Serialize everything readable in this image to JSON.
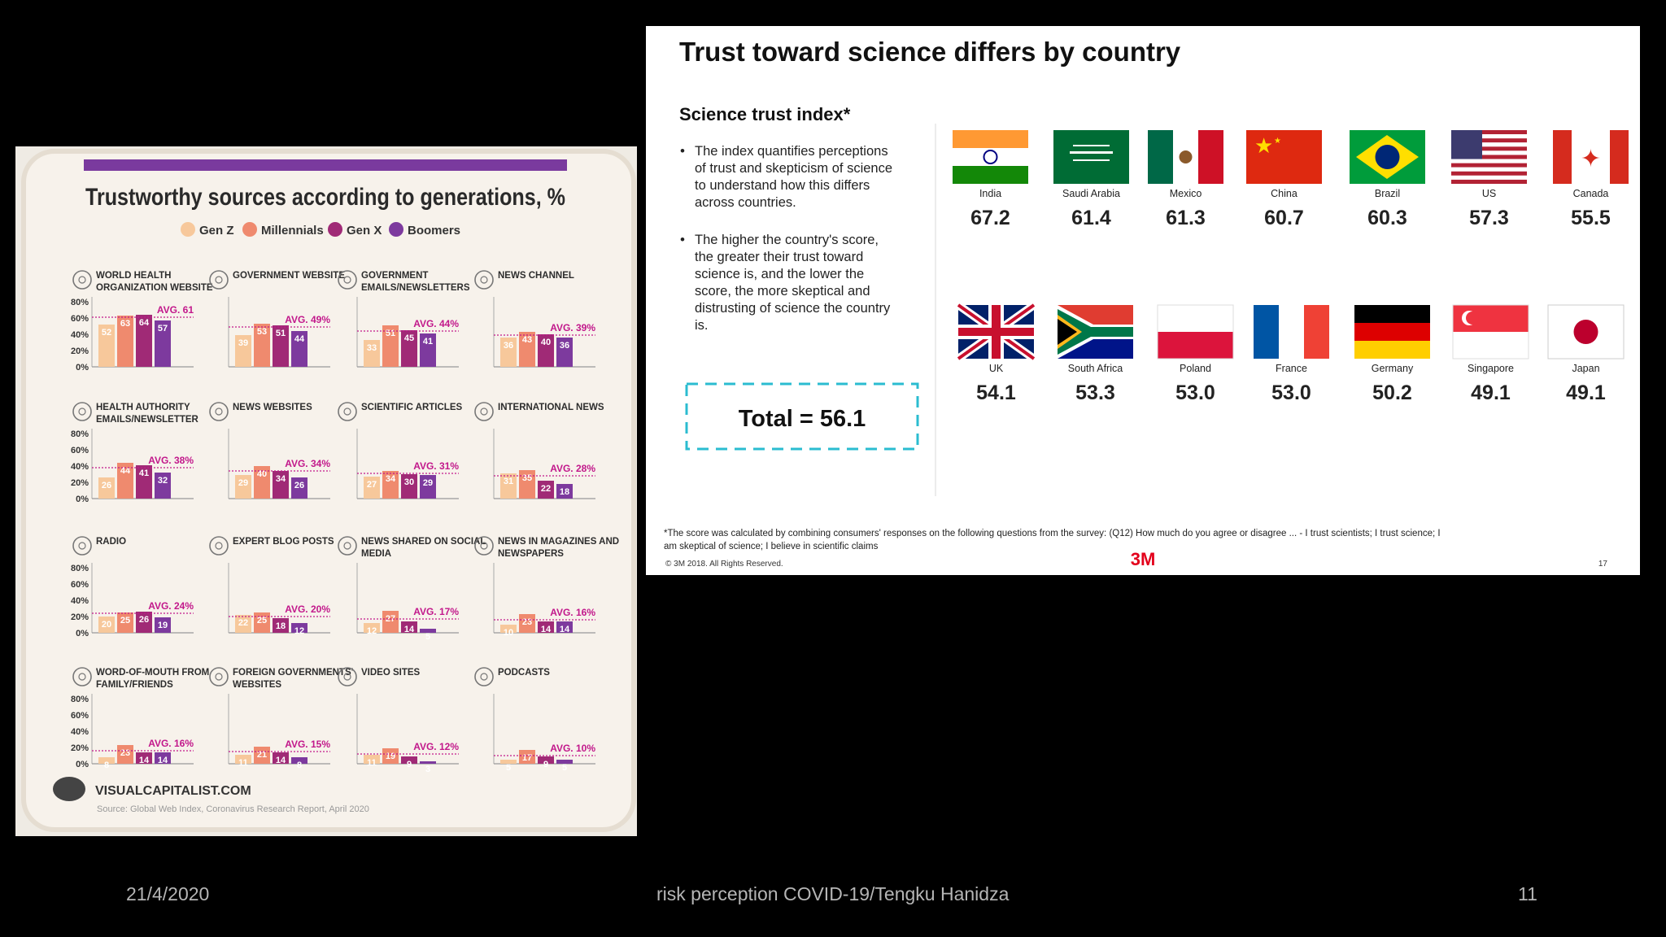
{
  "slide": {
    "date": "21/4/2020",
    "footer": "risk perception COVID-19/Tengku Hanidza",
    "page_number": "11"
  },
  "chart_data": [
    {
      "type": "bar",
      "title": "Trustworthy sources according to generations, %",
      "series_names": [
        "Gen Z",
        "Millennials",
        "Gen X",
        "Boomers"
      ],
      "series_colors": [
        "#f7c89b",
        "#ef8a6e",
        "#a02a76",
        "#7d3a9e"
      ],
      "ylabels": [
        "80%",
        "60%",
        "40%",
        "20%",
        "0%"
      ],
      "ylim": [
        0,
        80
      ],
      "panels": [
        {
          "name": "WORLD HEALTH ORGANIZATION WEBSITE",
          "values": [
            52,
            63,
            64,
            57
          ],
          "avg": 61,
          "avg_label": "AVG. 61"
        },
        {
          "name": "GOVERNMENT WEBSITE",
          "values": [
            39,
            53,
            51,
            44
          ],
          "avg": 49,
          "avg_label": "AVG. 49%"
        },
        {
          "name": "GOVERNMENT EMAILS/NEWSLETTERS",
          "values": [
            33,
            51,
            45,
            41
          ],
          "avg": 44,
          "avg_label": "AVG. 44%"
        },
        {
          "name": "NEWS CHANNEL",
          "values": [
            36,
            43,
            40,
            36
          ],
          "avg": 39,
          "avg_label": "AVG. 39%"
        },
        {
          "name": "HEALTH AUTHORITY EMAILS/NEWSLETTER",
          "values": [
            26,
            44,
            41,
            32
          ],
          "avg": 38,
          "avg_label": "AVG. 38%"
        },
        {
          "name": "NEWS WEBSITES",
          "values": [
            29,
            40,
            34,
            26
          ],
          "avg": 34,
          "avg_label": "AVG. 34%"
        },
        {
          "name": "SCIENTIFIC ARTICLES",
          "values": [
            27,
            34,
            30,
            29
          ],
          "avg": 31,
          "avg_label": "AVG. 31%"
        },
        {
          "name": "INTERNATIONAL NEWS",
          "values": [
            31,
            35,
            22,
            18
          ],
          "avg": 28,
          "avg_label": "AVG. 28%"
        },
        {
          "name": "RADIO",
          "values": [
            20,
            25,
            26,
            19
          ],
          "avg": 24,
          "avg_label": "AVG. 24%"
        },
        {
          "name": "EXPERT BLOG POSTS",
          "values": [
            22,
            25,
            18,
            12
          ],
          "avg": 20,
          "avg_label": "AVG. 20%"
        },
        {
          "name": "NEWS SHARED ON SOCIAL MEDIA",
          "values": [
            12,
            27,
            14,
            5
          ],
          "avg": 17,
          "avg_label": "AVG. 17%"
        },
        {
          "name": "NEWS IN MAGAZINES AND NEWSPAPERS",
          "values": [
            10,
            23,
            14,
            14
          ],
          "avg": 16,
          "avg_label": "AVG. 16%"
        },
        {
          "name": "WORD-OF-MOUTH FROM FAMILY/FRIENDS",
          "values": [
            8,
            23,
            14,
            14
          ],
          "avg": 16,
          "avg_label": "AVG. 16%"
        },
        {
          "name": "FOREIGN GOVERNMENTS' WEBSITES",
          "values": [
            11,
            21,
            14,
            8
          ],
          "avg": 15,
          "avg_label": "AVG. 15%"
        },
        {
          "name": "VIDEO SITES",
          "values": [
            11,
            19,
            9,
            3
          ],
          "avg": 12,
          "avg_label": "AVG. 12%"
        },
        {
          "name": "PODCASTS",
          "values": [
            5,
            17,
            9,
            5
          ],
          "avg": 10,
          "avg_label": "AVG. 10%"
        }
      ],
      "brand": "VISUALCAPITALIST.COM",
      "source": "Source: Global Web Index, Coronavirus Research Report, April 2020"
    },
    {
      "type": "table",
      "title": "Trust toward science differs by country",
      "subtitle": "Science trust index*",
      "bullets": [
        "The index quantifies perceptions of trust and skepticism of science to understand how this differs across countries.",
        "The higher the country's score, the greater their trust toward science is, and the lower the score, the more skeptical and distrusting of science the country is."
      ],
      "total_label": "Total = 56.1",
      "countries": [
        {
          "name": "India",
          "score": "67.2",
          "flag": "india-flag"
        },
        {
          "name": "Saudi Arabia",
          "score": "61.4",
          "flag": "saudi-arabia-flag"
        },
        {
          "name": "Mexico",
          "score": "61.3",
          "flag": "mexico-flag"
        },
        {
          "name": "China",
          "score": "60.7",
          "flag": "china-flag"
        },
        {
          "name": "Brazil",
          "score": "60.3",
          "flag": "brazil-flag"
        },
        {
          "name": "US",
          "score": "57.3",
          "flag": "us-flag"
        },
        {
          "name": "Canada",
          "score": "55.5",
          "flag": "canada-flag"
        },
        {
          "name": "UK",
          "score": "54.1",
          "flag": "uk-flag"
        },
        {
          "name": "South Africa",
          "score": "53.3",
          "flag": "south-africa-flag"
        },
        {
          "name": "Poland",
          "score": "53.0",
          "flag": "poland-flag"
        },
        {
          "name": "France",
          "score": "53.0",
          "flag": "france-flag"
        },
        {
          "name": "Germany",
          "score": "50.2",
          "flag": "germany-flag"
        },
        {
          "name": "Singapore",
          "score": "49.1",
          "flag": "singapore-flag"
        },
        {
          "name": "Japan",
          "score": "49.1",
          "flag": "japan-flag"
        }
      ],
      "footnote": "*The score was calculated by combining consumers' responses on the following questions from the survey: (Q12) How much do you agree or disagree ...  - I trust scientists; I trust science; I am skeptical of science; I believe in scientific claims",
      "copyright": "© 3M 2018.   All Rights Reserved.",
      "logo": "3M",
      "slide_number": "17"
    }
  ]
}
